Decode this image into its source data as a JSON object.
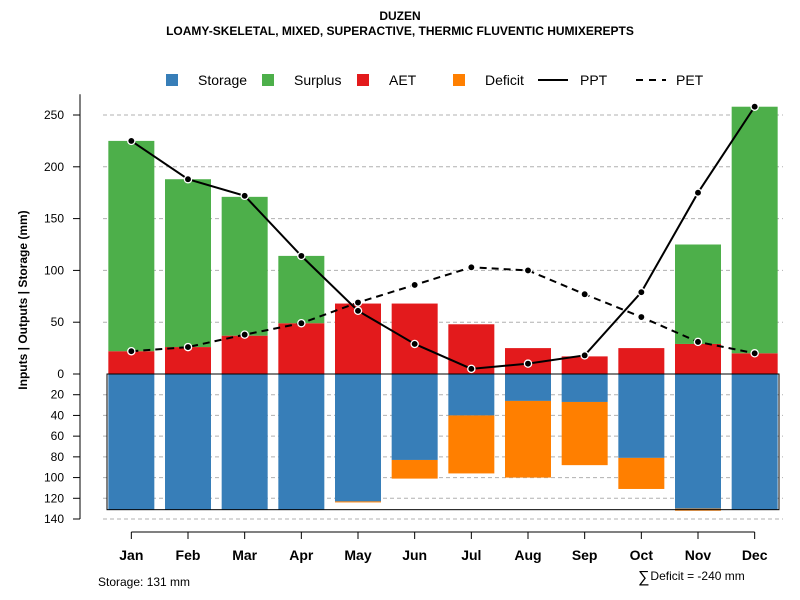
{
  "chart_data": {
    "type": "bar",
    "title": "DUZEN",
    "subtitle": "LOAMY-SKELETAL, MIXED, SUPERACTIVE, THERMIC FLUVENTIC HUMIXEREPTS",
    "ylabel": "Inputs | Outputs | Storage    (mm)",
    "categories": [
      "Jan",
      "Feb",
      "Mar",
      "Apr",
      "May",
      "Jun",
      "Jul",
      "Aug",
      "Sep",
      "Oct",
      "Nov",
      "Dec"
    ],
    "upper_ylim": [
      0,
      270
    ],
    "upper_ticks": [
      0,
      50,
      100,
      150,
      200,
      250
    ],
    "lower_ylim": [
      0,
      140
    ],
    "lower_ticks": [
      0,
      20,
      40,
      60,
      80,
      100,
      120,
      140
    ],
    "storage_capacity": 131,
    "series": [
      {
        "name": "AET",
        "panel": "upper",
        "color": "#E31A1C",
        "values": [
          22,
          26,
          37,
          49,
          68,
          68,
          48,
          25,
          17,
          25,
          29,
          20
        ]
      },
      {
        "name": "Surplus",
        "panel": "upper",
        "color": "#4DAF4A",
        "values": [
          203,
          162,
          134,
          65,
          0,
          0,
          0,
          0,
          0,
          0,
          96,
          238
        ]
      },
      {
        "name": "Storage",
        "panel": "lower",
        "color": "#377EB8",
        "values": [
          131,
          131,
          131,
          131,
          123,
          83,
          40,
          26,
          27,
          81,
          130,
          131
        ]
      },
      {
        "name": "Deficit",
        "panel": "lower",
        "color": "#FF7F00",
        "values": [
          0,
          0,
          0,
          0,
          1,
          18,
          56,
          74,
          61,
          30,
          2,
          0
        ]
      },
      {
        "name": "PPT",
        "panel": "upper",
        "style": "solid",
        "values": [
          225,
          188,
          172,
          114,
          61,
          29,
          5,
          10,
          18,
          79,
          175,
          258
        ]
      },
      {
        "name": "PET",
        "panel": "upper",
        "style": "dashed",
        "values": [
          22,
          26,
          38,
          49,
          69,
          86,
          103,
          100,
          77,
          55,
          31,
          20
        ]
      }
    ],
    "legend": [
      "Storage",
      "Surplus",
      "AET",
      "Deficit",
      "PPT",
      "PET"
    ],
    "legend_position": "top",
    "grid": true
  },
  "annotations": {
    "storage_label": "Storage: 131 mm",
    "deficit_symbol": "∑",
    "deficit_label": "Deficit = -240 mm"
  },
  "colors": {
    "storage": "#377EB8",
    "surplus": "#4DAF4A",
    "aet": "#E31A1C",
    "deficit": "#FF7F00",
    "line": "#000000",
    "grid": "#B0B0B0"
  }
}
